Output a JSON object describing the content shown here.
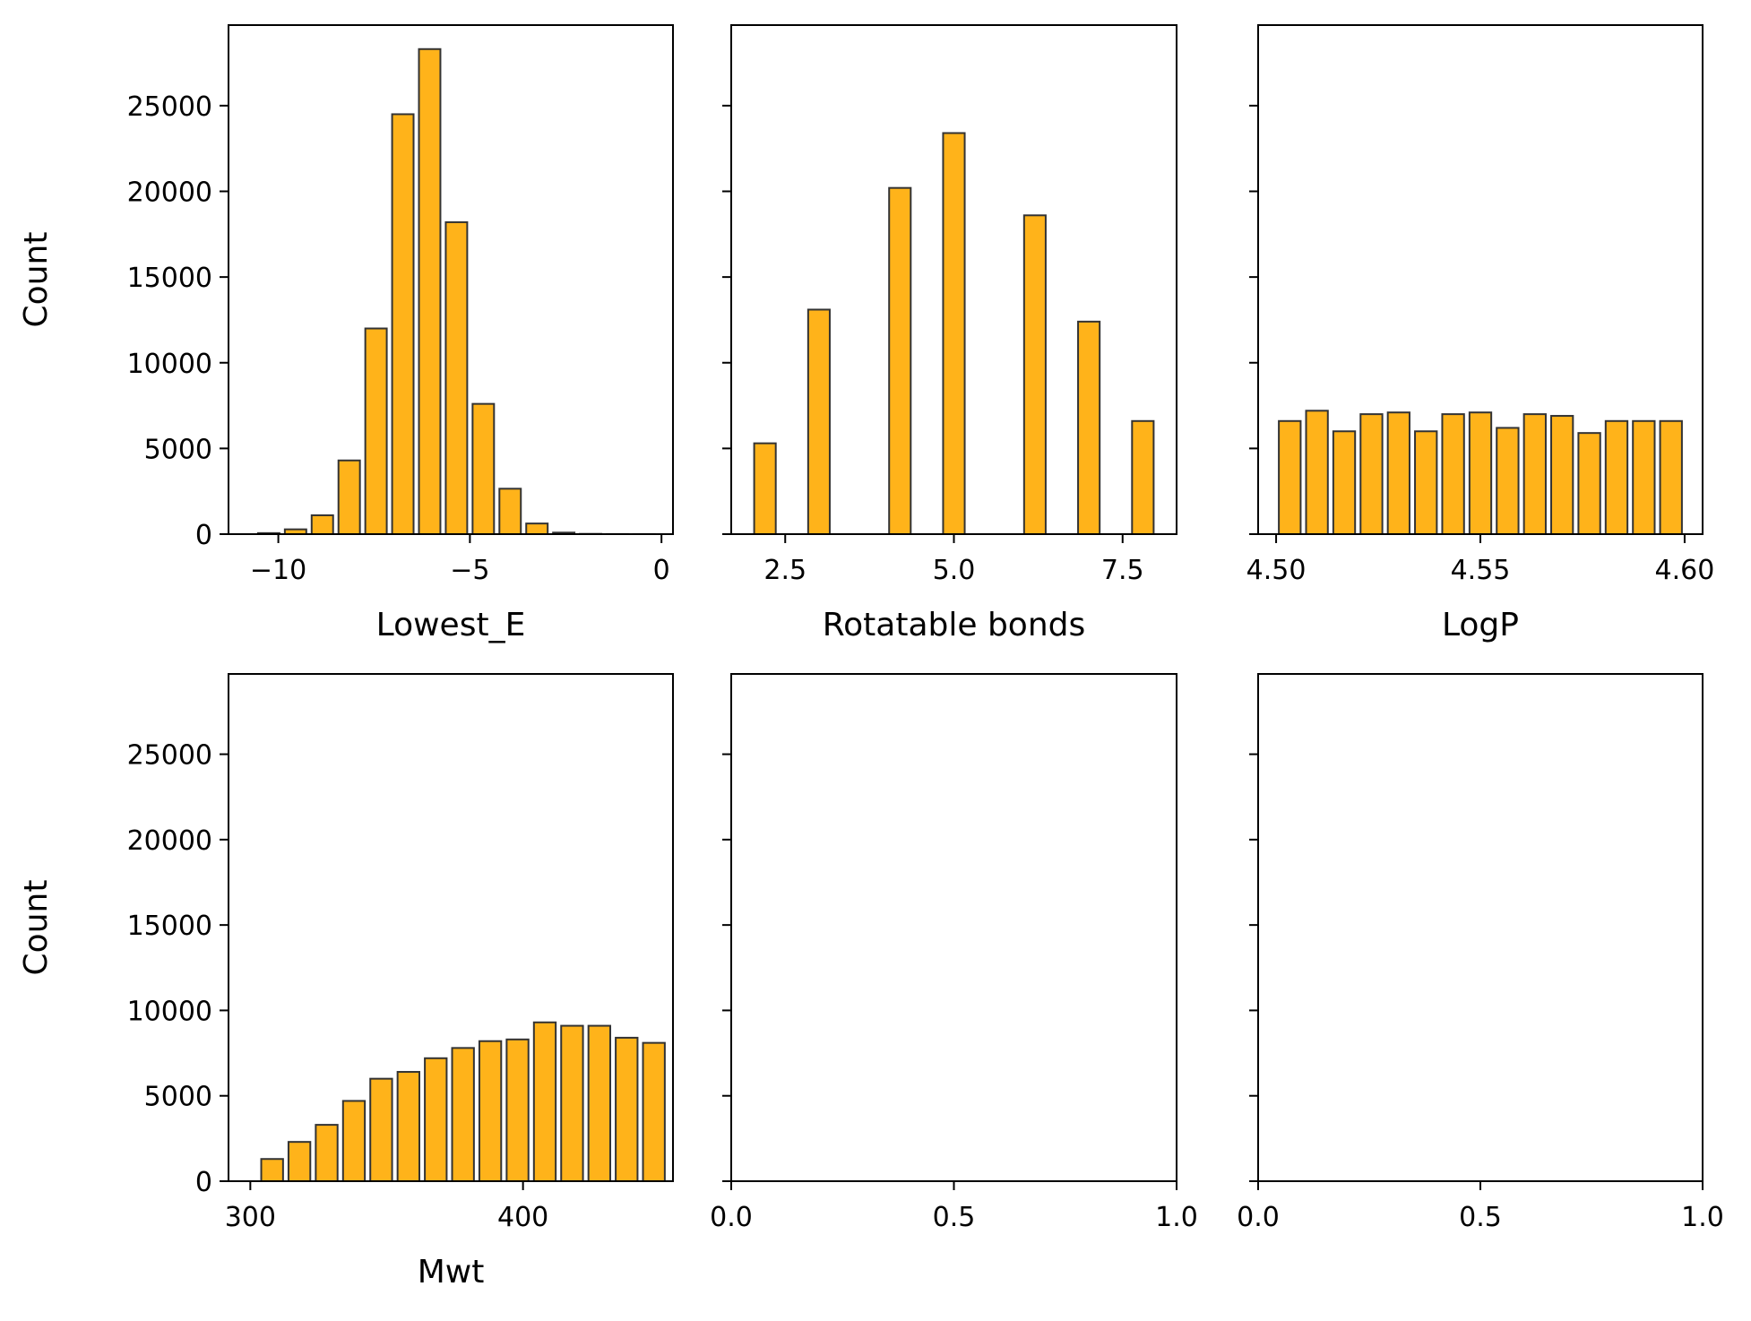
{
  "style": {
    "bar_fill": "#FFB31A",
    "bar_edge": "#333333",
    "axes_color": "#000000"
  },
  "shared_y": {
    "ylim": [
      0,
      29700
    ],
    "ticks": [
      0,
      5000,
      10000,
      15000,
      20000,
      25000
    ],
    "tick_labels": [
      "0",
      "5000",
      "10000",
      "15000",
      "20000",
      "25000"
    ],
    "ylabel": "Count"
  },
  "chart_data": [
    {
      "type": "bar",
      "title": "",
      "xlabel": "Lowest_E",
      "ylabel": "Count",
      "xlim": [
        -11.3,
        0.3
      ],
      "x_ticks": [
        -10,
        -5,
        0
      ],
      "x_tick_labels": [
        "−10",
        "−5",
        "0"
      ],
      "bin_edges": [
        -10.6,
        -9.9,
        -9.2,
        -8.5,
        -7.8,
        -7.1,
        -6.4,
        -5.7,
        -5.0,
        -4.3,
        -3.6,
        -2.9,
        -2.2,
        -1.5,
        -0.8,
        -0.1
      ],
      "values": [
        60,
        280,
        1100,
        4300,
        12000,
        24500,
        28300,
        18200,
        7600,
        2650,
        620,
        90,
        15,
        5,
        3
      ],
      "show_ytick_labels": true
    },
    {
      "type": "bar",
      "title": "",
      "xlabel": "Rotatable bonds",
      "ylabel": "",
      "xlim": [
        1.7,
        8.3
      ],
      "x_ticks": [
        2.5,
        5.0,
        7.5
      ],
      "x_tick_labels": [
        "2.5",
        "5.0",
        "7.5"
      ],
      "bin_edges": [
        2.0,
        2.4,
        2.8,
        3.2,
        3.6,
        4.0,
        4.4,
        4.8,
        5.2,
        5.6,
        6.0,
        6.4,
        6.8,
        7.2,
        7.6,
        8.0
      ],
      "values": [
        5300,
        0,
        13100,
        0,
        0,
        20200,
        0,
        23400,
        0,
        0,
        18600,
        0,
        12400,
        0,
        6600
      ],
      "show_ytick_labels": false
    },
    {
      "type": "bar",
      "title": "",
      "xlabel": "LogP",
      "ylabel": "",
      "xlim": [
        4.4956,
        4.6044
      ],
      "x_ticks": [
        4.5,
        4.55,
        4.6
      ],
      "x_tick_labels": [
        "4.50",
        "4.55",
        "4.60"
      ],
      "bin_edges": [
        4.5,
        4.50667,
        4.51333,
        4.52,
        4.52667,
        4.53333,
        4.54,
        4.54667,
        4.55333,
        4.56,
        4.56667,
        4.57333,
        4.58,
        4.58667,
        4.59333,
        4.6
      ],
      "values": [
        6600,
        7200,
        6000,
        7000,
        7100,
        6000,
        7000,
        7100,
        6200,
        7000,
        6900,
        5900,
        6600,
        6600,
        6600
      ],
      "show_ytick_labels": false
    },
    {
      "type": "bar",
      "title": "",
      "xlabel": "Mwt",
      "ylabel": "Count",
      "xlim": [
        292,
        455
      ],
      "x_ticks": [
        300,
        400
      ],
      "x_tick_labels": [
        "300",
        "400"
      ],
      "bin_edges": [
        303,
        313,
        323,
        333,
        343,
        353,
        363,
        373,
        383,
        393,
        403,
        413,
        423,
        433,
        443,
        453
      ],
      "values": [
        1300,
        2300,
        3300,
        4700,
        6000,
        6400,
        7200,
        7800,
        8200,
        8300,
        9300,
        9100,
        9100,
        8400,
        8100
      ],
      "show_ytick_labels": true
    },
    {
      "type": "bar",
      "title": "",
      "xlabel": "",
      "ylabel": "",
      "xlim": [
        0,
        1
      ],
      "x_ticks": [
        0,
        0.5,
        1.0
      ],
      "x_tick_labels": [
        "0.0",
        "0.5",
        "1.0"
      ],
      "bin_edges": [],
      "values": [],
      "show_ytick_labels": false
    },
    {
      "type": "bar",
      "title": "",
      "xlabel": "",
      "ylabel": "",
      "xlim": [
        0,
        1
      ],
      "x_ticks": [
        0,
        0.5,
        1.0
      ],
      "x_tick_labels": [
        "0.0",
        "0.5",
        "1.0"
      ],
      "bin_edges": [],
      "values": [],
      "show_ytick_labels": false
    }
  ]
}
